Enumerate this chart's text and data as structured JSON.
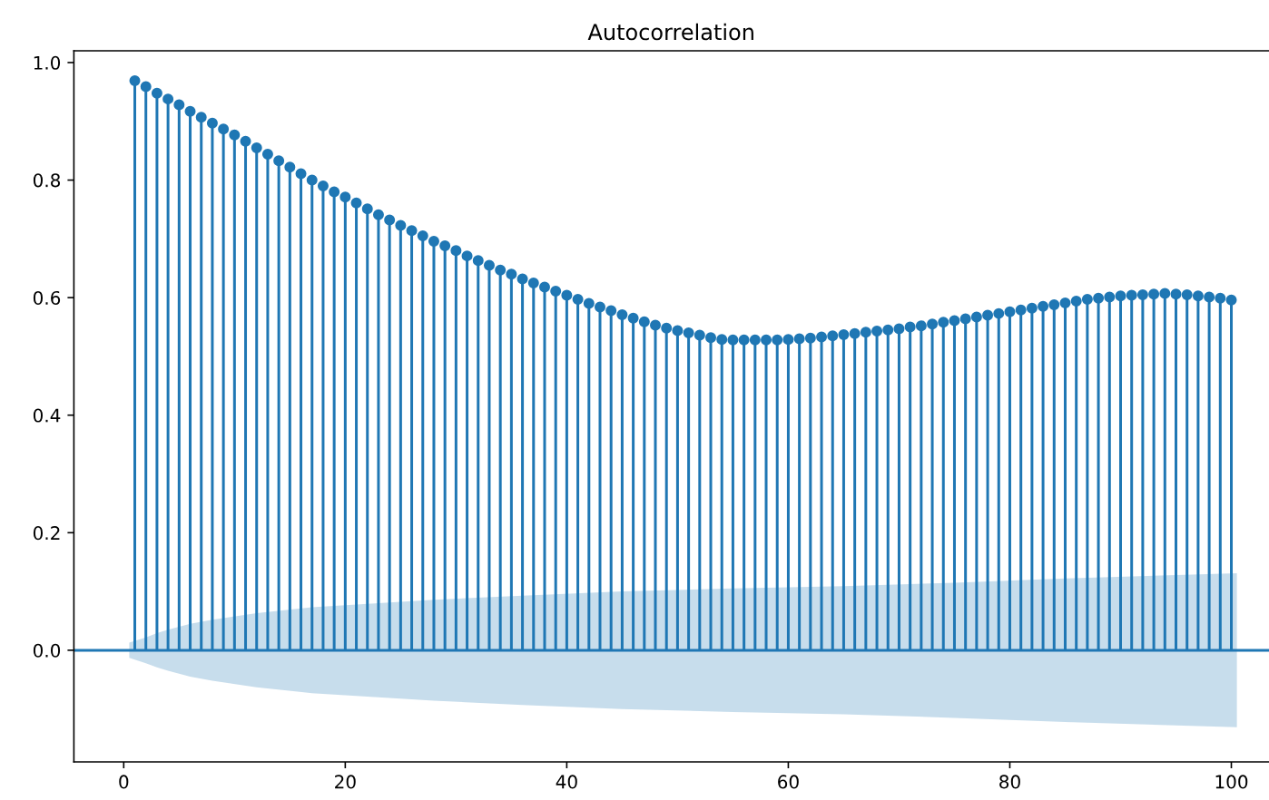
{
  "chart_data": {
    "type": "lollipop",
    "title": "Autocorrelation",
    "x": [
      1,
      2,
      3,
      4,
      5,
      6,
      7,
      8,
      9,
      10,
      11,
      12,
      13,
      14,
      15,
      16,
      17,
      18,
      19,
      20,
      21,
      22,
      23,
      24,
      25,
      26,
      27,
      28,
      29,
      30,
      31,
      32,
      33,
      34,
      35,
      36,
      37,
      38,
      39,
      40,
      41,
      42,
      43,
      44,
      45,
      46,
      47,
      48,
      49,
      50,
      51,
      52,
      53,
      54,
      55,
      56,
      57,
      58,
      59,
      60,
      61,
      62,
      63,
      64,
      65,
      66,
      67,
      68,
      69,
      70,
      71,
      72,
      73,
      74,
      75,
      76,
      77,
      78,
      79,
      80,
      81,
      82,
      83,
      84,
      85,
      86,
      87,
      88,
      89,
      90,
      91,
      92,
      93,
      94,
      95,
      96,
      97,
      98,
      99,
      100
    ],
    "xlim": [
      -4.5,
      103.4
    ],
    "xticks": [
      0,
      20,
      40,
      60,
      80,
      100
    ],
    "ylim": [
      -0.19,
      1.02
    ],
    "yticks": [
      {
        "value": 0,
        "label": "0.0"
      },
      {
        "value": 0.2,
        "label": "0.2"
      },
      {
        "value": 0.4,
        "label": "0.4"
      },
      {
        "value": 0.6,
        "label": "0.6"
      },
      {
        "value": 0.8,
        "label": "0.8"
      },
      {
        "value": 1,
        "label": "1.0"
      }
    ],
    "series": [
      {
        "color": "#1f77b4",
        "marker": "circle",
        "values": [
          0.969,
          0.959,
          0.948,
          0.938,
          0.928,
          0.917,
          0.907,
          0.897,
          0.887,
          0.877,
          0.866,
          0.855,
          0.844,
          0.833,
          0.822,
          0.811,
          0.8,
          0.79,
          0.78,
          0.771,
          0.761,
          0.751,
          0.741,
          0.732,
          0.723,
          0.714,
          0.705,
          0.696,
          0.688,
          0.68,
          0.671,
          0.663,
          0.655,
          0.647,
          0.64,
          0.632,
          0.625,
          0.618,
          0.611,
          0.604,
          0.597,
          0.59,
          0.584,
          0.578,
          0.571,
          0.565,
          0.559,
          0.553,
          0.548,
          0.544,
          0.54,
          0.536,
          0.532,
          0.529,
          0.528,
          0.528,
          0.528,
          0.528,
          0.528,
          0.529,
          0.53,
          0.531,
          0.533,
          0.535,
          0.537,
          0.539,
          0.541,
          0.543,
          0.545,
          0.547,
          0.55,
          0.552,
          0.555,
          0.558,
          0.561,
          0.564,
          0.567,
          0.57,
          0.573,
          0.576,
          0.579,
          0.582,
          0.585,
          0.588,
          0.591,
          0.594,
          0.597,
          0.599,
          0.601,
          0.603,
          0.604,
          0.605,
          0.606,
          0.607,
          0.606,
          0.605,
          0.603,
          0.601,
          0.599,
          0.596
        ]
      },
      {
        "type": "line",
        "color": "#1f77b4",
        "x": [
          -4.5,
          0.5,
          2,
          3,
          4,
          6,
          8,
          12,
          17,
          23,
          28,
          36,
          45,
          55,
          65,
          75,
          85,
          95,
          100.5,
          103.4
        ],
        "values": [
          0,
          0,
          0,
          0,
          0,
          0,
          0,
          0,
          0,
          0,
          0,
          0,
          0,
          0,
          0,
          0,
          0,
          0,
          0,
          0
        ],
        "lower": [
          null,
          -0.013,
          -0.022,
          -0.029,
          -0.035,
          -0.045,
          -0.052,
          -0.063,
          -0.073,
          -0.08,
          -0.086,
          -0.093,
          -0.1,
          -0.105,
          -0.109,
          -0.115,
          -0.122,
          -0.128,
          -0.131,
          null
        ],
        "upper": [
          null,
          0.013,
          0.022,
          0.029,
          0.035,
          0.045,
          0.052,
          0.063,
          0.073,
          0.08,
          0.086,
          0.093,
          0.1,
          0.105,
          0.109,
          0.115,
          0.122,
          0.128,
          0.131,
          null
        ]
      }
    ]
  }
}
